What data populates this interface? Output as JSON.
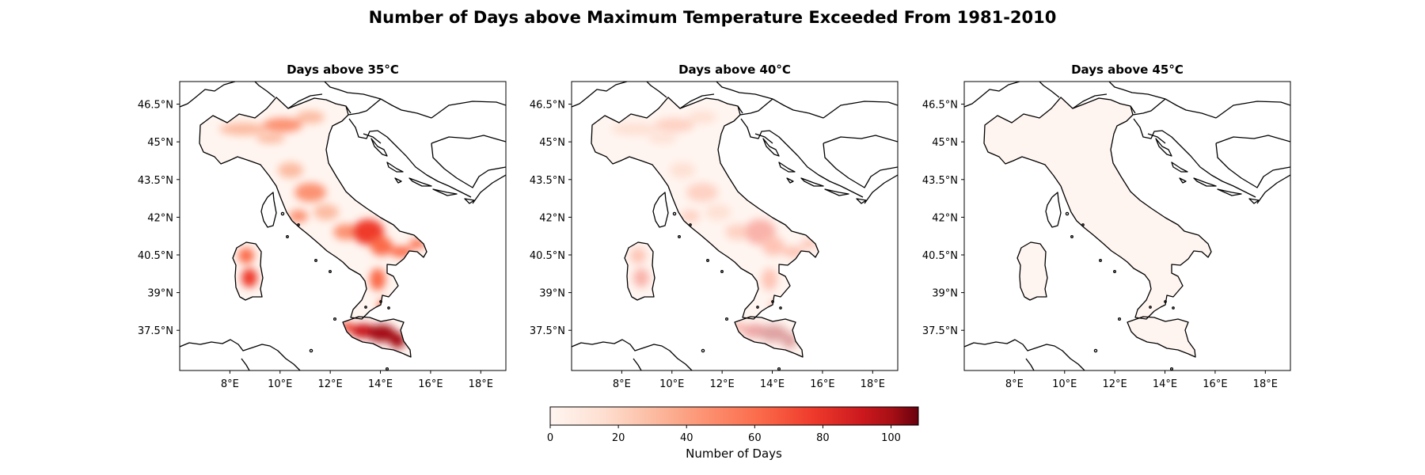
{
  "figure": {
    "title": "Number of Days above Maximum Temperature Exceeded From 1981-2010"
  },
  "panels": [
    {
      "title": "Days above 35°C",
      "threshold_c": 35,
      "intensity": 1.0
    },
    {
      "title": "Days above 40°C",
      "threshold_c": 40,
      "intensity": 0.35
    },
    {
      "title": "Days above 45°C",
      "threshold_c": 45,
      "intensity": 0.0
    }
  ],
  "axes": {
    "lon_ticks": [
      "8°E",
      "10°E",
      "12°E",
      "14°E",
      "16°E",
      "18°E"
    ],
    "lat_ticks": [
      "46.5°N",
      "45°N",
      "43.5°N",
      "42°N",
      "40.5°N",
      "39°N",
      "37.5°N"
    ],
    "lon_range": [
      6,
      19
    ],
    "lat_range": [
      35.9,
      47.4
    ]
  },
  "colorbar": {
    "label": "Number of Days",
    "ticks": [
      "0",
      "20",
      "40",
      "60",
      "80",
      "100"
    ],
    "range": [
      0,
      108
    ],
    "colormap": "Reds",
    "colors": [
      "#fff5f0",
      "#fcbba1",
      "#fc9272",
      "#fb6a4a",
      "#ef3b2c",
      "#cb181d",
      "#a50f15",
      "#67000d"
    ]
  }
}
